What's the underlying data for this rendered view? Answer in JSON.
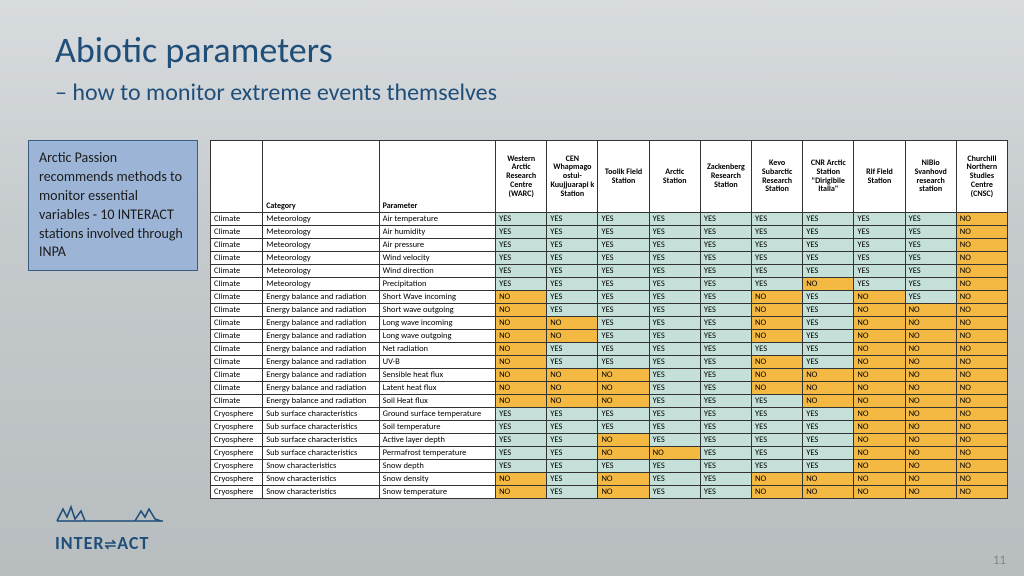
{
  "title": "Abiotic parameters",
  "subtitle": "– how to monitor extreme events themselves",
  "sidebar": "Arctic Passion recommends methods to monitor essential variables\n- 10 INTERACT stations involved through INPA",
  "logo": "INTER⇌ACT",
  "page_num": "11",
  "headers": {
    "cat1": "",
    "cat2": "Category",
    "cat3": "Parameter",
    "stations": [
      "Western Arctic Research Centre (WARC)",
      "CEN Whapmago ostui-Kuujjuarapi k Station",
      "Toolik Field Station",
      "Arctic Station",
      "Zackenberg Research Station",
      "Kevo Subarctic Research Station",
      "CNR Arctic Station \"Dirigibile Italia\"",
      "Rif Field Station",
      "NiBio Svanhovd research station",
      "Churchill Northern Studies Centre (CNSC)"
    ]
  },
  "colors": {
    "yes_bg": "#c5e0d8",
    "no_bg": "#f4b942"
  },
  "rows": [
    {
      "d": "Climate",
      "c": "Meteorology",
      "p": "Air temperature",
      "v": [
        "YES",
        "YES",
        "YES",
        "YES",
        "YES",
        "YES",
        "YES",
        "YES",
        "YES",
        "NO"
      ]
    },
    {
      "d": "Climate",
      "c": "Meteorology",
      "p": "Air humidity",
      "v": [
        "YES",
        "YES",
        "YES",
        "YES",
        "YES",
        "YES",
        "YES",
        "YES",
        "YES",
        "NO"
      ]
    },
    {
      "d": "Climate",
      "c": "Meteorology",
      "p": "Air pressure",
      "v": [
        "YES",
        "YES",
        "YES",
        "YES",
        "YES",
        "YES",
        "YES",
        "YES",
        "YES",
        "NO"
      ]
    },
    {
      "d": "Climate",
      "c": "Meteorology",
      "p": "Wind velocity",
      "v": [
        "YES",
        "YES",
        "YES",
        "YES",
        "YES",
        "YES",
        "YES",
        "YES",
        "YES",
        "NO"
      ]
    },
    {
      "d": "Climate",
      "c": "Meteorology",
      "p": "Wind direction",
      "v": [
        "YES",
        "YES",
        "YES",
        "YES",
        "YES",
        "YES",
        "YES",
        "YES",
        "YES",
        "NO"
      ]
    },
    {
      "d": "Climate",
      "c": "Meteorology",
      "p": "Precipitation",
      "v": [
        "YES",
        "YES",
        "YES",
        "YES",
        "YES",
        "YES",
        "NO",
        "YES",
        "YES",
        "NO"
      ]
    },
    {
      "d": "Climate",
      "c": "Energy balance and radiation",
      "p": "Short Wave incoming",
      "v": [
        "NO",
        "YES",
        "YES",
        "YES",
        "YES",
        "NO",
        "YES",
        "NO",
        "YES",
        "NO"
      ]
    },
    {
      "d": "Climate",
      "c": "Energy balance and radiation",
      "p": "Short wave outgoing",
      "v": [
        "NO",
        "YES",
        "YES",
        "YES",
        "YES",
        "NO",
        "YES",
        "NO",
        "NO",
        "NO"
      ]
    },
    {
      "d": "Climate",
      "c": "Energy balance and radiation",
      "p": "Long wave incoming",
      "v": [
        "NO",
        "NO",
        "YES",
        "YES",
        "YES",
        "NO",
        "YES",
        "NO",
        "NO",
        "NO"
      ]
    },
    {
      "d": "Climate",
      "c": "Energy balance and radiation",
      "p": "Long wave outgoing",
      "v": [
        "NO",
        "NO",
        "YES",
        "YES",
        "YES",
        "NO",
        "YES",
        "NO",
        "NO",
        "NO"
      ]
    },
    {
      "d": "Climate",
      "c": "Energy balance and radiation",
      "p": "Net radiation",
      "v": [
        "NO",
        "YES",
        "YES",
        "YES",
        "YES",
        "YES",
        "YES",
        "NO",
        "NO",
        "NO"
      ]
    },
    {
      "d": "Climate",
      "c": "Energy balance and radiation",
      "p": "UV-B",
      "v": [
        "NO",
        "YES",
        "YES",
        "YES",
        "YES",
        "NO",
        "YES",
        "NO",
        "NO",
        "NO"
      ]
    },
    {
      "d": "Climate",
      "c": "Energy balance and radiation",
      "p": "Sensible heat flux",
      "v": [
        "NO",
        "NO",
        "NO",
        "YES",
        "YES",
        "NO",
        "NO",
        "NO",
        "NO",
        "NO"
      ]
    },
    {
      "d": "Climate",
      "c": "Energy balance and radiation",
      "p": "Latent heat flux",
      "v": [
        "NO",
        "NO",
        "NO",
        "YES",
        "YES",
        "NO",
        "NO",
        "NO",
        "NO",
        "NO"
      ]
    },
    {
      "d": "Climate",
      "c": "Energy balance and radiation",
      "p": "Soil Heat flux",
      "v": [
        "NO",
        "NO",
        "NO",
        "YES",
        "YES",
        "YES",
        "NO",
        "NO",
        "NO",
        "NO"
      ]
    },
    {
      "d": "Cryosphere",
      "c": "Sub surface characteristics",
      "p": "Ground surface temperature",
      "v": [
        "YES",
        "YES",
        "YES",
        "YES",
        "YES",
        "YES",
        "YES",
        "NO",
        "NO",
        "NO"
      ]
    },
    {
      "d": "Cryosphere",
      "c": "Sub surface characteristics",
      "p": "Soil temperature",
      "v": [
        "YES",
        "YES",
        "YES",
        "YES",
        "YES",
        "YES",
        "YES",
        "NO",
        "NO",
        "NO"
      ]
    },
    {
      "d": "Cryosphere",
      "c": "Sub surface characteristics",
      "p": "Active layer depth",
      "v": [
        "YES",
        "YES",
        "NO",
        "YES",
        "YES",
        "YES",
        "YES",
        "NO",
        "NO",
        "NO"
      ]
    },
    {
      "d": "Cryosphere",
      "c": "Sub surface characteristics",
      "p": "Permafrost temperature",
      "v": [
        "YES",
        "YES",
        "NO",
        "NO",
        "YES",
        "YES",
        "YES",
        "NO",
        "NO",
        "NO"
      ]
    },
    {
      "d": "Cryosphere",
      "c": "Snow characteristics",
      "p": "Snow depth",
      "v": [
        "YES",
        "YES",
        "YES",
        "YES",
        "YES",
        "YES",
        "YES",
        "NO",
        "NO",
        "NO"
      ]
    },
    {
      "d": "Cryosphere",
      "c": "Snow characteristics",
      "p": "Snow density",
      "v": [
        "NO",
        "YES",
        "NO",
        "YES",
        "YES",
        "NO",
        "NO",
        "NO",
        "NO",
        "NO"
      ]
    },
    {
      "d": "Cryosphere",
      "c": "Snow characteristics",
      "p": "Snow temperature",
      "v": [
        "NO",
        "YES",
        "NO",
        "YES",
        "YES",
        "NO",
        "NO",
        "NO",
        "NO",
        "NO"
      ]
    }
  ]
}
